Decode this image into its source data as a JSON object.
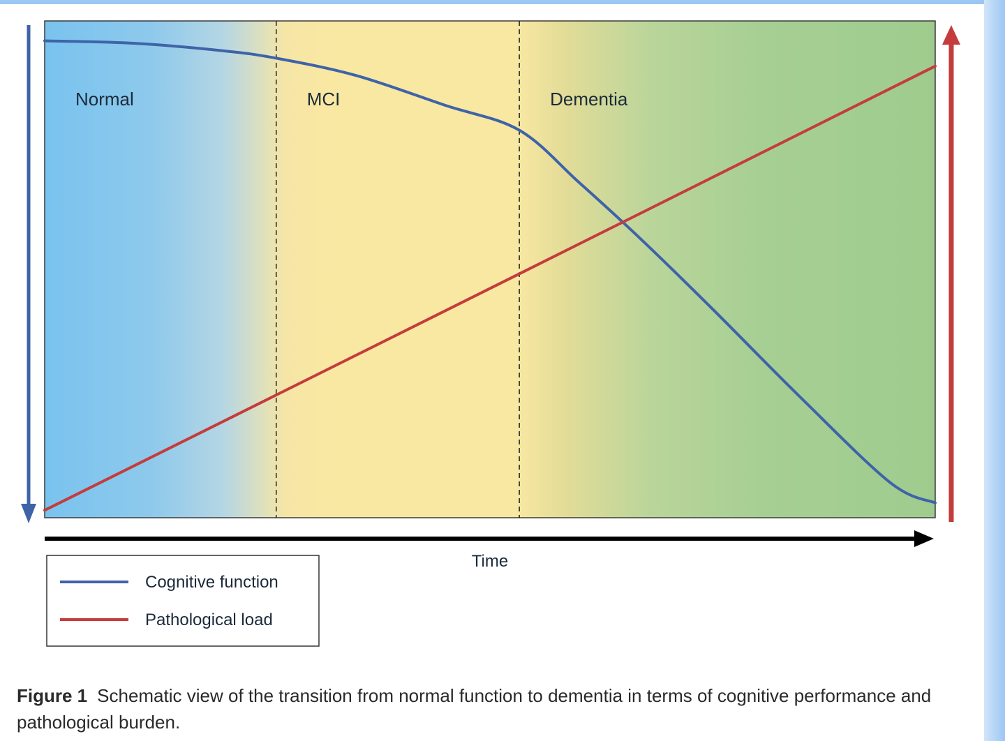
{
  "chart_data": {
    "type": "line",
    "title": "",
    "xlabel": "Time",
    "ylabel": "",
    "xlim": [
      0,
      100
    ],
    "ylim": [
      0,
      100
    ],
    "grid": false,
    "phases": [
      {
        "name": "Normal",
        "start": 0,
        "end": 26
      },
      {
        "name": "MCI",
        "start": 26,
        "end": 53.3
      },
      {
        "name": "Dementia",
        "start": 53.3,
        "end": 100
      }
    ],
    "series": [
      {
        "name": "Cognitive function",
        "color": "#3f63a8",
        "x": [
          0,
          10,
          20,
          26,
          35,
          45,
          53.3,
          60,
          67,
          75,
          85,
          95,
          100
        ],
        "y": [
          96,
          95.5,
          94,
          92.5,
          89,
          83,
          78,
          67.5,
          56,
          42,
          24,
          7,
          3
        ]
      },
      {
        "name": "Pathological load",
        "color": "#c43c3c",
        "x": [
          0,
          26,
          53.3,
          100
        ],
        "y": [
          1.5,
          24.7,
          49.1,
          90.9
        ]
      }
    ],
    "legend": {
      "position": "bottom-left",
      "entries": [
        {
          "label": "Cognitive function",
          "color": "#3f63a8"
        },
        {
          "label": "Pathological load",
          "color": "#c43c3c"
        }
      ]
    },
    "left_arrow": {
      "direction": "down",
      "color": "#3f63a8"
    },
    "right_arrow": {
      "direction": "up",
      "color": "#c43c3c"
    },
    "time_arrow": {
      "direction": "right",
      "color": "#000000"
    }
  },
  "caption": {
    "label": "Figure 1",
    "text": "Schematic view of the transition from normal function to dementia in terms of cognitive performance and pathological burden."
  }
}
